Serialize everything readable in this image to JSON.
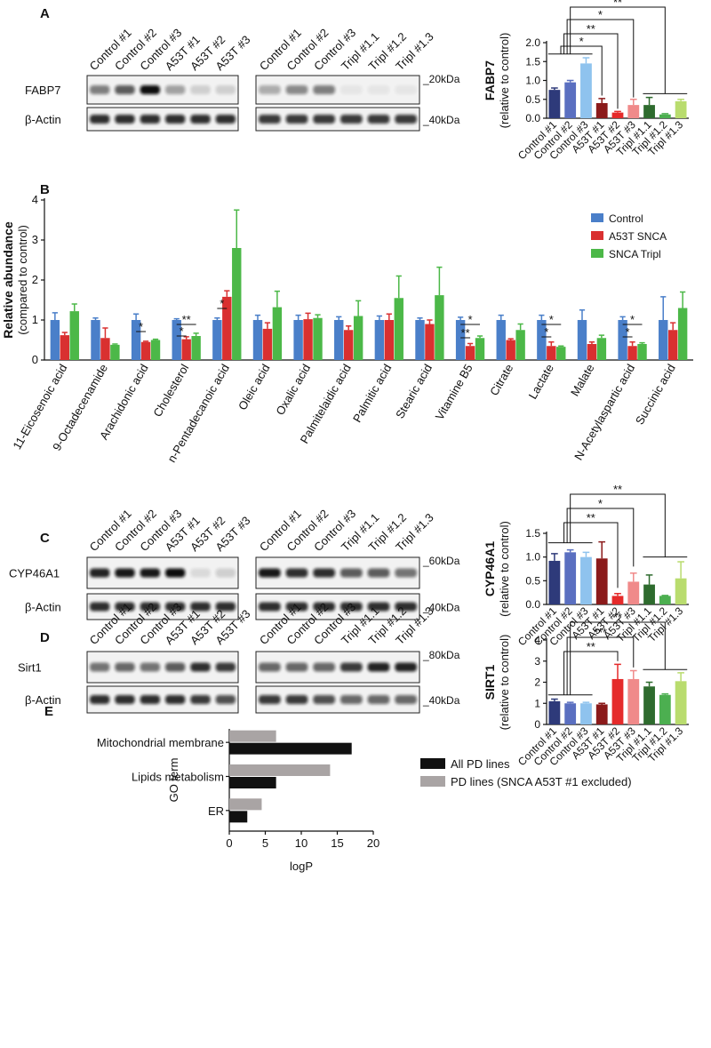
{
  "panel_labels": [
    "A",
    "B",
    "C",
    "D",
    "E"
  ],
  "blots": [
    {
      "lanes_left": [
        "Control #1",
        "Control #2",
        "Control #3",
        "A53T #1",
        "A53T #2",
        "A53T #3"
      ],
      "lanes_right": [
        "Control #1",
        "Control #2",
        "Control #3",
        "Tripl #1.1",
        "Tripl #1.2",
        "Tripl #1.3"
      ],
      "protein": "FABP7",
      "protein_kda": "_20kDa",
      "loading": "β-Actin",
      "loading_kda": "_40kDa"
    },
    {
      "lanes_left": [
        "Control #1",
        "Control #2",
        "Control #3",
        "A53T #1",
        "A53T #2",
        "A53T #3"
      ],
      "lanes_right": [
        "Control #1",
        "Control #2",
        "Control #3",
        "Tripl #1.1",
        "Tripl #1.2",
        "Tripl #1.3"
      ],
      "protein": "CYP46A1",
      "protein_kda": "_60kDa",
      "loading": "β-Actin",
      "loading_kda": "_40kDa"
    },
    {
      "lanes_left": [
        "Control #1",
        "Control #2",
        "Control #3",
        "A53T #1",
        "A53T #2",
        "A53T #3"
      ],
      "lanes_right": [
        "Control #1",
        "Control #2",
        "Control #3",
        "Tripl #1.1",
        "Tripl #1.2",
        "Tripl #1.3"
      ],
      "protein": "Sirt1",
      "protein_kda": "_80kDa",
      "loading": "β-Actin",
      "loading_kda": "_40kDa"
    }
  ],
  "chart_data": [
    {
      "type": "bar",
      "y_title": "FABP7",
      "y_label": "(relative to control)",
      "categories": [
        "Control #1",
        "Control #2",
        "Control #3",
        "A53T #1",
        "A53T #2",
        "A53T #3",
        "Tripl #1.1",
        "Tripl #1.2",
        "Tripl #1.3"
      ],
      "values": [
        0.75,
        0.95,
        1.45,
        0.4,
        0.15,
        0.35,
        0.35,
        0.1,
        0.45
      ],
      "errors": [
        0.05,
        0.05,
        0.15,
        0.12,
        0.03,
        0.15,
        0.2,
        0.02,
        0.05
      ],
      "colors": [
        "#2e3a7a",
        "#5a6fc0",
        "#8fc3ee",
        "#8b1a1a",
        "#e52a2a",
        "#f08a8a",
        "#2e6b2e",
        "#4caf50",
        "#b9dc6e"
      ],
      "ylim": [
        0,
        2
      ],
      "yticks": [
        {
          "value": 0,
          "label": "0.0"
        },
        0.5,
        {
          "value": 1,
          "label": "1.0"
        },
        1.5,
        {
          "value": 2,
          "label": "2.0"
        }
      ],
      "annotations": [
        "**",
        "*",
        "**",
        "*"
      ]
    },
    {
      "type": "bar",
      "y_title": "Relative abundance",
      "y_label": "(compared to control)",
      "categories": [
        "11-Eicosenoic acid",
        "9-Octadecenamide",
        "Arachidonic acid",
        "Cholesterol",
        "n-Pentadecanoic acid",
        "Oleic acid",
        "Oxalic acid",
        "Palmitelaidic acid",
        "Palmitic acid",
        "Stearic acid",
        "Vitamine B5",
        "Citrate",
        "Lactate",
        "Malate",
        "N-Acetylaspartic acid",
        "Succinic acid"
      ],
      "series": [
        {
          "name": "Control",
          "color": "#4a7fc9",
          "values": [
            1,
            1,
            1,
            1,
            1,
            1,
            1,
            1,
            1,
            1,
            1,
            1,
            1,
            1,
            1,
            1
          ],
          "errors": [
            0.18,
            0.05,
            0.15,
            0.03,
            0.05,
            0.12,
            0.12,
            0.08,
            0.1,
            0.05,
            0.07,
            0.12,
            0.12,
            0.25,
            0.08,
            0.58
          ]
        },
        {
          "name": "A53T SNCA",
          "color": "#d93030",
          "values": [
            0.62,
            0.55,
            0.45,
            0.52,
            1.58,
            0.78,
            1.02,
            0.75,
            1,
            0.9,
            0.35,
            0.5,
            0.35,
            0.4,
            0.35,
            0.75
          ],
          "errors": [
            0.07,
            0.25,
            0.02,
            0.06,
            0.15,
            0.15,
            0.15,
            0.1,
            0.15,
            0.1,
            0.06,
            0.03,
            0.1,
            0.05,
            0.1,
            0.18
          ]
        },
        {
          "name": "SNCA Tripl",
          "color": "#4cb848",
          "values": [
            1.22,
            0.38,
            0.5,
            0.6,
            2.8,
            1.32,
            1.05,
            1.1,
            1.55,
            1.62,
            0.55,
            0.75,
            0.33,
            0.55,
            0.4,
            1.3
          ],
          "errors": [
            0.18,
            0.02,
            0.02,
            0.07,
            0.95,
            0.4,
            0.08,
            0.38,
            0.55,
            0.7,
            0.05,
            0.15,
            0.02,
            0.07,
            0.03,
            0.4
          ]
        }
      ],
      "ylim": [
        0,
        4
      ],
      "yticks": [
        0,
        1,
        2,
        3,
        4
      ],
      "legend": "upper right",
      "annotations": [
        "*",
        "**",
        "*",
        "*",
        "*",
        "**",
        "*",
        "*",
        "*",
        "*"
      ]
    },
    {
      "type": "bar",
      "y_title": "CYP46A1",
      "y_label": "(relative to control)",
      "categories": [
        "Control #1",
        "Control #2",
        "Control #3",
        "A53T #1",
        "A53T #2",
        "A53T #3",
        "Tripl #1.1",
        "Tripl #1.2",
        "Tripl #1.3"
      ],
      "values": [
        0.92,
        1.1,
        1.0,
        0.97,
        0.18,
        0.48,
        0.42,
        0.18,
        0.55
      ],
      "errors": [
        0.15,
        0.05,
        0.1,
        0.35,
        0.05,
        0.18,
        0.2,
        0.01,
        0.35
      ],
      "colors": [
        "#2e3a7a",
        "#5a6fc0",
        "#8fc3ee",
        "#8b1a1a",
        "#e52a2a",
        "#f08a8a",
        "#2e6b2e",
        "#4caf50",
        "#b9dc6e"
      ],
      "ylim": [
        0,
        1.5
      ],
      "yticks": [
        {
          "value": 0,
          "label": "0.0"
        },
        0.5,
        {
          "value": 1,
          "label": "1.0"
        },
        1.5
      ],
      "annotations": [
        "**",
        "*",
        "**"
      ]
    },
    {
      "type": "bar",
      "y_title": "SIRT1",
      "y_label": "(relative to control)",
      "categories": [
        "Control #1",
        "Control #2",
        "Control #3",
        "A53T #1",
        "A53T #2",
        "A53T #3",
        "Tripl #1.1",
        "Tripl #1.2",
        "Tripl #1.3"
      ],
      "values": [
        1.1,
        1.0,
        1.0,
        0.95,
        2.15,
        2.15,
        1.8,
        1.4,
        2.05
      ],
      "errors": [
        0.1,
        0.05,
        0.05,
        0.05,
        0.7,
        0.4,
        0.2,
        0.05,
        0.4
      ],
      "colors": [
        "#2e3a7a",
        "#5a6fc0",
        "#8fc3ee",
        "#8b1a1a",
        "#e52a2a",
        "#f08a8a",
        "#2e6b2e",
        "#4caf50",
        "#b9dc6e"
      ],
      "ylim": [
        0,
        4
      ],
      "yticks": [
        0,
        1,
        2,
        3,
        4
      ],
      "annotations": [
        "**",
        "***",
        "**"
      ]
    },
    {
      "type": "barh",
      "y_label": "GO term",
      "x_label": "logP",
      "categories": [
        "Mitochondrial membrane",
        "Lipids metabolism",
        "ER"
      ],
      "series": [
        {
          "name": "All PD lines",
          "color": "#111111",
          "values": [
            17,
            6.5,
            2.5
          ]
        },
        {
          "name": "PD lines (SNCA A53T #1 excluded)",
          "color": "#a9a4a4",
          "values": [
            6.5,
            14,
            4.5
          ]
        }
      ],
      "xlim": [
        0,
        20
      ],
      "xticks": [
        0,
        5,
        10,
        15,
        20
      ],
      "legend": "right"
    }
  ]
}
